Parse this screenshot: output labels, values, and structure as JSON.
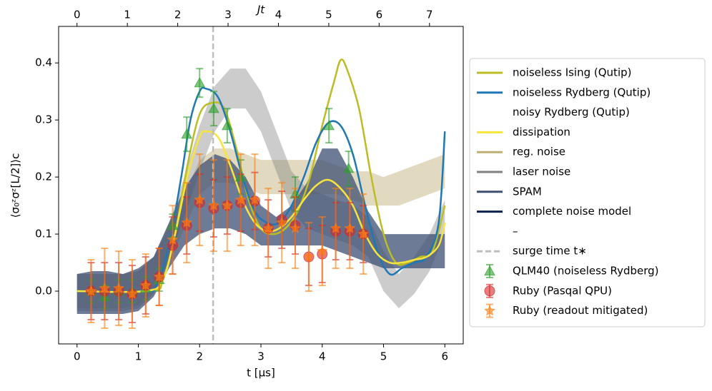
{
  "chart_data": {
    "type": "line",
    "xlabel": "t [μs]",
    "ylabel": "⟨σ₀ᶻσᶻ[L/2]⟩c",
    "x2label": "Jt",
    "xlim": [
      -0.3,
      6.3
    ],
    "xticks": [
      0,
      1,
      2,
      3,
      4,
      5,
      6
    ],
    "x2lim": [
      -0.365,
      7.67
    ],
    "x2ticks": [
      0,
      1,
      2,
      3,
      4,
      5,
      6,
      7
    ],
    "ylim": [
      -0.0925,
      0.464
    ],
    "yticks": [
      {
        "value": 0,
        "label": "0.0"
      },
      0.1,
      0.2,
      0.3,
      0.4
    ],
    "legend": "right",
    "series": [
      {
        "name": "noiseless Ising (Qutip)",
        "color": "#bcbd22",
        "style": "line",
        "x": [
          0,
          1.2,
          1.4,
          1.6,
          1.8,
          2.0,
          2.2,
          2.4,
          2.6,
          2.8,
          3.0,
          3.2,
          3.4,
          3.6,
          3.8,
          4.0,
          4.2,
          4.3,
          4.4,
          4.6,
          4.8,
          5.0,
          5.2,
          5.4,
          5.6,
          5.8,
          6.0
        ],
        "values": [
          0,
          0,
          0.02,
          0.1,
          0.22,
          0.31,
          0.33,
          0.32,
          0.25,
          0.16,
          0.11,
          0.1,
          0.11,
          0.14,
          0.2,
          0.29,
          0.37,
          0.405,
          0.39,
          0.32,
          0.2,
          0.1,
          0.05,
          0.05,
          0.06,
          0.07,
          0.15
        ]
      },
      {
        "name": "noiseless Rydberg (Qutip)",
        "color": "#1f77b4",
        "style": "line",
        "x": [
          0,
          1.1,
          1.3,
          1.5,
          1.7,
          1.85,
          2.0,
          2.1,
          2.3,
          2.5,
          2.7,
          2.9,
          3.1,
          3.3,
          3.5,
          3.7,
          3.9,
          4.1,
          4.3,
          4.5,
          4.7,
          4.9,
          5.1,
          5.3,
          5.5,
          5.7,
          5.9,
          6.0
        ],
        "values": [
          0,
          0,
          0.01,
          0.08,
          0.2,
          0.3,
          0.35,
          0.355,
          0.34,
          0.28,
          0.2,
          0.14,
          0.12,
          0.12,
          0.15,
          0.2,
          0.26,
          0.295,
          0.29,
          0.24,
          0.15,
          0.07,
          0.03,
          0.04,
          0.05,
          0.06,
          0.12,
          0.28
        ]
      },
      {
        "name": "noisy Rydberg (Qutip)"
      },
      {
        "name": "dissipation",
        "color": "#f7e43c",
        "style": "line",
        "x": [
          0,
          1.1,
          1.4,
          1.6,
          1.8,
          2.0,
          2.1,
          2.3,
          2.5,
          2.7,
          2.9,
          3.1,
          3.3,
          3.5,
          3.7,
          3.9,
          4.1,
          4.3,
          4.5,
          4.7,
          4.9,
          5.1,
          5.3,
          5.5,
          5.7,
          5.9,
          6.0
        ],
        "values": [
          0,
          0,
          0.02,
          0.1,
          0.2,
          0.27,
          0.28,
          0.27,
          0.22,
          0.16,
          0.12,
          0.105,
          0.11,
          0.13,
          0.16,
          0.185,
          0.195,
          0.18,
          0.15,
          0.1,
          0.065,
          0.05,
          0.05,
          0.055,
          0.06,
          0.08,
          0.12
        ]
      },
      {
        "name": "reg. noise",
        "color": "#bfae74",
        "style": "band",
        "alpha": 0.45,
        "x": [
          0,
          0.25,
          0.5,
          0.75,
          1,
          1.25,
          1.5,
          1.75,
          2,
          2.25,
          2.5,
          2.75,
          3,
          3.25,
          3.5,
          3.75,
          4,
          4.25,
          4.5,
          4.75,
          5,
          5.25,
          5.5,
          5.75,
          6
        ],
        "lower": [
          -0.03,
          -0.03,
          -0.03,
          -0.03,
          -0.025,
          0.0,
          0.05,
          0.11,
          0.17,
          0.19,
          0.19,
          0.18,
          0.17,
          0.17,
          0.17,
          0.17,
          0.17,
          0.17,
          0.16,
          0.15,
          0.15,
          0.15,
          0.16,
          0.17,
          0.18
        ],
        "upper": [
          0.03,
          0.03,
          0.03,
          0.03,
          0.035,
          0.06,
          0.11,
          0.17,
          0.23,
          0.25,
          0.25,
          0.24,
          0.23,
          0.23,
          0.23,
          0.23,
          0.23,
          0.22,
          0.21,
          0.21,
          0.2,
          0.21,
          0.22,
          0.23,
          0.24
        ]
      },
      {
        "name": "laser noise",
        "color": "#808080",
        "style": "band",
        "alpha": 0.4,
        "x": [
          0,
          0.25,
          0.5,
          0.75,
          1,
          1.25,
          1.5,
          1.75,
          2,
          2.25,
          2.5,
          2.75,
          3,
          3.25,
          3.5,
          3.75,
          4,
          4.25,
          4.5,
          4.75,
          5,
          5.25,
          5.5,
          5.75,
          6
        ],
        "lower": [
          -0.035,
          -0.035,
          -0.035,
          -0.035,
          -0.03,
          -0.005,
          0.055,
          0.13,
          0.21,
          0.28,
          0.32,
          0.32,
          0.28,
          0.21,
          0.14,
          0.11,
          0.1,
          0.09,
          0.08,
          0.06,
          0.0,
          -0.03,
          -0.005,
          0.035,
          0.1
        ],
        "upper": [
          0.03,
          0.03,
          0.03,
          0.03,
          0.035,
          0.06,
          0.12,
          0.2,
          0.29,
          0.36,
          0.39,
          0.39,
          0.35,
          0.28,
          0.21,
          0.18,
          0.17,
          0.16,
          0.15,
          0.13,
          0.07,
          0.03,
          0.06,
          0.1,
          0.16
        ]
      },
      {
        "name": "SPAM",
        "color": "#3e4f74",
        "style": "band",
        "alpha": 0.75,
        "x": [
          0,
          0.25,
          0.5,
          0.75,
          1,
          1.25,
          1.5,
          1.75,
          2,
          2.25,
          2.5,
          2.75,
          3,
          3.25,
          3.5,
          3.75,
          4,
          4.25,
          4.5,
          4.75,
          5,
          5.25,
          5.5,
          5.75,
          6
        ],
        "lower": [
          -0.04,
          -0.04,
          -0.04,
          -0.04,
          -0.035,
          -0.01,
          0.04,
          0.08,
          0.1,
          0.11,
          0.11,
          0.1,
          0.08,
          0.08,
          0.08,
          0.08,
          0.08,
          0.07,
          0.06,
          0.05,
          0.04,
          0.04,
          0.04,
          0.04,
          0.04
        ],
        "upper": [
          0.03,
          0.035,
          0.035,
          0.03,
          0.04,
          0.06,
          0.12,
          0.18,
          0.22,
          0.24,
          0.23,
          0.2,
          0.15,
          0.13,
          0.15,
          0.19,
          0.25,
          0.25,
          0.2,
          0.14,
          0.1,
          0.1,
          0.1,
          0.1,
          0.1
        ]
      },
      {
        "name": "complete noise model",
        "color": "#0b2150",
        "style": "line"
      },
      {
        "name": "–"
      },
      {
        "name": "surge time t∗",
        "color": "#bdbdbd",
        "style": "dashed",
        "value": 2.22
      },
      {
        "name": "QLM40 (noiseless Rydberg)",
        "color": "#2ca02c",
        "style": "errorbar",
        "marker": "triangle",
        "x": [
          0.23,
          0.45,
          0.68,
          0.9,
          1.12,
          1.34,
          1.56,
          1.79,
          2.0,
          2.23,
          2.45,
          2.67,
          3.56,
          4.11,
          4.43
        ],
        "values": [
          0,
          -0.01,
          0,
          0,
          0.005,
          0.02,
          0.115,
          0.275,
          0.365,
          0.32,
          0.29,
          0.2,
          0.17,
          0.29,
          0.215
        ],
        "errors": [
          0.02,
          0.02,
          0.02,
          0.02,
          0.02,
          0.02,
          0.02,
          0.03,
          0.025,
          0.03,
          0.03,
          0.03,
          0.03,
          0.03,
          0.03
        ]
      },
      {
        "name": "Ruby (Pasqal QPU)",
        "color": "#d62728",
        "style": "errorbar",
        "marker": "circle",
        "x": [
          0.23,
          0.45,
          0.68,
          0.9,
          1.12,
          1.34,
          1.56,
          1.79,
          2.0,
          2.23,
          2.45,
          2.67,
          2.9,
          3.12,
          3.34,
          3.56,
          3.78,
          4.0,
          4.22,
          4.45,
          4.67
        ],
        "values": [
          0,
          0,
          0,
          -0.005,
          0.01,
          0.025,
          0.08,
          0.115,
          0.155,
          0.145,
          0.15,
          0.155,
          0.158,
          0.11,
          0.125,
          0.115,
          0.06,
          0.065,
          0.105,
          0.105,
          0.1
        ],
        "errors": [
          0.05,
          0.05,
          0.05,
          0.05,
          0.05,
          0.05,
          0.05,
          0.05,
          0.05,
          0.05,
          0.05,
          0.05,
          0.05,
          0.05,
          0.05,
          0.05,
          0.05,
          0.05,
          0.05,
          0.05,
          0.05
        ]
      },
      {
        "name": "Ruby (readout mitigated)",
        "color": "#ff7f0e",
        "style": "errorbar",
        "marker": "star",
        "x": [
          0.23,
          0.45,
          0.68,
          0.9,
          1.12,
          1.34,
          1.56,
          1.79,
          2.0,
          2.23,
          2.45,
          2.67,
          2.9,
          3.12,
          3.34,
          3.56,
          3.78,
          4.0,
          4.22,
          4.45,
          4.67
        ],
        "values": [
          0,
          0.005,
          0.005,
          -0.005,
          0.01,
          0.025,
          0.09,
          0.12,
          0.16,
          0.15,
          0.15,
          0.16,
          0.16,
          0.11,
          0.12,
          0.11,
          0.06,
          0.07,
          0.11,
          0.11,
          0.1
        ],
        "errors": [
          0.055,
          0.07,
          0.065,
          0.06,
          0.055,
          0.05,
          0.06,
          0.07,
          0.08,
          0.08,
          0.08,
          0.08,
          0.08,
          0.07,
          0.07,
          0.07,
          0.06,
          0.06,
          0.07,
          0.07,
          0.07
        ]
      }
    ]
  }
}
